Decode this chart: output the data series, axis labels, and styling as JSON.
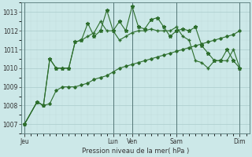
{
  "background_color": "#cce8e8",
  "grid_color_major": "#aacccc",
  "grid_color_minor": "#c0dada",
  "line_color": "#2d6e2d",
  "title": "Pression niveau de la mer( hPa )",
  "ylim": [
    1006.5,
    1013.5
  ],
  "yticks": [
    1007,
    1008,
    1009,
    1010,
    1011,
    1012,
    1013
  ],
  "day_labels": [
    "Jeu",
    "Lun",
    "Ven",
    "Sam",
    "Dim"
  ],
  "day_positions": [
    0,
    14,
    17,
    24,
    34
  ],
  "xlim": [
    -0.5,
    35.5
  ],
  "series1_x": [
    0,
    2,
    3,
    4,
    5,
    6,
    7,
    8,
    9,
    10,
    11,
    12,
    13,
    14,
    15,
    16,
    17,
    18,
    19,
    20,
    21,
    22,
    23,
    24,
    25,
    26,
    27,
    28,
    29,
    30,
    31,
    32,
    33,
    34
  ],
  "series1_y": [
    1007.0,
    1008.2,
    1008.0,
    1008.1,
    1008.8,
    1009.0,
    1009.0,
    1009.0,
    1009.1,
    1009.2,
    1009.4,
    1009.5,
    1009.6,
    1009.8,
    1010.0,
    1010.1,
    1010.2,
    1010.3,
    1010.4,
    1010.5,
    1010.6,
    1010.7,
    1010.8,
    1010.9,
    1011.0,
    1011.1,
    1011.2,
    1011.3,
    1011.4,
    1011.5,
    1011.6,
    1011.7,
    1011.8,
    1012.0
  ],
  "series2_x": [
    0,
    2,
    3,
    4,
    5,
    6,
    7,
    8,
    9,
    10,
    11,
    12,
    13,
    14,
    15,
    16,
    17,
    18,
    19,
    20,
    21,
    22,
    23,
    24,
    25,
    26,
    27,
    28,
    29,
    30,
    31,
    32,
    33,
    34
  ],
  "series2_y": [
    1007.0,
    1008.2,
    1008.0,
    1010.5,
    1010.0,
    1010.0,
    1010.0,
    1011.4,
    1011.5,
    1011.7,
    1011.9,
    1012.5,
    1012.0,
    1012.0,
    1011.5,
    1011.7,
    1011.9,
    1012.0,
    1012.0,
    1012.1,
    1012.0,
    1012.0,
    1012.0,
    1012.2,
    1011.7,
    1011.5,
    1010.4,
    1010.3,
    1010.0,
    1010.4,
    1010.4,
    1010.4,
    1011.0,
    1010.0
  ],
  "series3_x": [
    0,
    2,
    3,
    4,
    5,
    6,
    7,
    8,
    9,
    10,
    11,
    12,
    13,
    14,
    15,
    16,
    17,
    18,
    19,
    20,
    21,
    22,
    23,
    24,
    25,
    26,
    27,
    28,
    29,
    30,
    31,
    32,
    33,
    34
  ],
  "series3_y": [
    1007.0,
    1008.2,
    1008.0,
    1010.5,
    1010.0,
    1010.0,
    1010.0,
    1011.4,
    1011.5,
    1012.4,
    1011.7,
    1012.0,
    1013.1,
    1012.0,
    1012.5,
    1012.0,
    1013.3,
    1012.2,
    1012.1,
    1012.6,
    1012.7,
    1012.2,
    1011.7,
    1012.0,
    1012.1,
    1012.0,
    1012.2,
    1011.2,
    1010.8,
    1010.4,
    1010.4,
    1011.0,
    1010.4,
    1010.0
  ]
}
